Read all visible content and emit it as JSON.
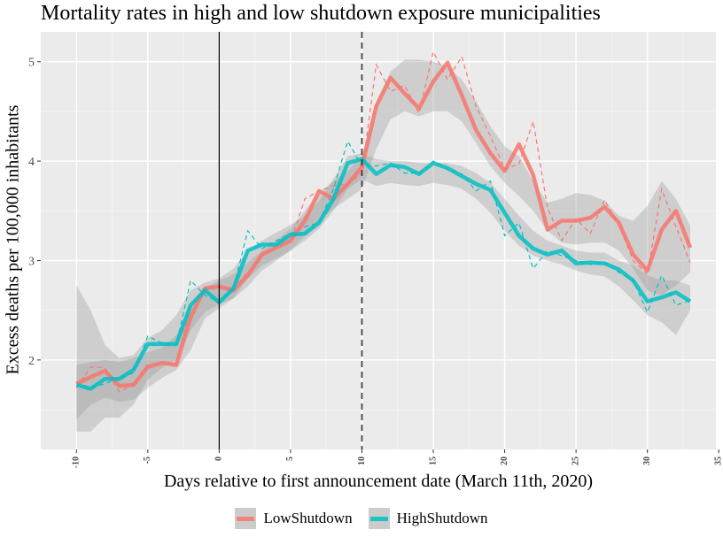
{
  "chart_data": {
    "type": "line",
    "title": "Mortality rates in high and low shutdown exposure municipalities",
    "xlabel": "Days relative to first announcement date (March 11th, 2020)",
    "ylabel": "Excess deaths per 100,000 inhabitants",
    "xlim": [
      -12.5,
      34.8
    ],
    "ylim": [
      1.1,
      5.3
    ],
    "x_ticks": [
      -10,
      -5,
      0,
      5,
      10,
      15,
      20,
      25,
      30,
      35
    ],
    "x_tick_labels": [
      "-10",
      "-5",
      "0",
      "5",
      "10",
      "15",
      "20",
      "25",
      "30",
      "35"
    ],
    "y_ticks": [
      2,
      3,
      4,
      5
    ],
    "y_tick_labels": [
      "2",
      "3",
      "4",
      "5"
    ],
    "vlines": [
      {
        "x": 0,
        "style": "solid"
      },
      {
        "x": 10,
        "style": "dashed"
      }
    ],
    "grid": true,
    "legend_position": "bottom",
    "colors": {
      "LowShutdown": "#f8766d",
      "HighShutdown": "#00bfc4"
    },
    "series": [
      {
        "name": "LowShutdown",
        "color": "#f8766d",
        "x": [
          -10,
          -9,
          -8,
          -7,
          -6,
          -5,
          -4,
          -3,
          -2,
          -1,
          0,
          1,
          2,
          3,
          4,
          5,
          6,
          7,
          8,
          9,
          10,
          11,
          12,
          13,
          14,
          15,
          16,
          17,
          18,
          19,
          20,
          21,
          22,
          23,
          24,
          25,
          26,
          27,
          28,
          29,
          30,
          31,
          32,
          33
        ],
        "raw": [
          1.72,
          1.93,
          1.92,
          1.68,
          1.75,
          1.95,
          1.97,
          1.96,
          2.55,
          2.72,
          2.73,
          2.72,
          2.88,
          3.04,
          3.15,
          3.18,
          3.62,
          3.7,
          3.75,
          3.77,
          3.88,
          4.97,
          4.7,
          4.76,
          4.48,
          5.1,
          4.82,
          5.05,
          4.55,
          4.25,
          3.92,
          3.97,
          4.4,
          3.53,
          3.2,
          3.42,
          3.27,
          3.61,
          3.36,
          3.0,
          2.86,
          3.72,
          3.34,
          2.98
        ],
        "smooth": [
          1.76,
          1.83,
          1.89,
          1.74,
          1.75,
          1.93,
          1.97,
          1.95,
          2.43,
          2.72,
          2.74,
          2.7,
          2.85,
          3.06,
          3.13,
          3.2,
          3.4,
          3.7,
          3.62,
          3.77,
          3.94,
          4.55,
          4.84,
          4.68,
          4.53,
          4.8,
          4.99,
          4.66,
          4.31,
          4.08,
          3.9,
          4.17,
          3.86,
          3.31,
          3.4,
          3.4,
          3.43,
          3.54,
          3.38,
          3.06,
          2.9,
          3.31,
          3.5,
          3.13
        ],
        "ci_lower": [
          1.4,
          1.55,
          1.62,
          1.58,
          1.6,
          1.72,
          1.82,
          1.9,
          2.1,
          2.42,
          2.52,
          2.62,
          2.74,
          2.9,
          3.0,
          3.1,
          3.25,
          3.4,
          3.52,
          3.62,
          3.72,
          4.12,
          4.42,
          4.5,
          4.45,
          4.5,
          4.5,
          4.4,
          4.18,
          3.95,
          3.78,
          3.65,
          3.5,
          3.3,
          3.18,
          3.16,
          3.18,
          3.18,
          3.1,
          2.92,
          2.7,
          2.65,
          2.75,
          2.88
        ],
        "ci_upper": [
          1.95,
          1.98,
          2.0,
          1.98,
          2.02,
          2.08,
          2.12,
          2.25,
          2.52,
          2.72,
          2.8,
          2.86,
          2.98,
          3.1,
          3.2,
          3.32,
          3.5,
          3.68,
          3.8,
          3.9,
          4.05,
          4.6,
          4.9,
          5.02,
          5.02,
          5.0,
          4.95,
          4.82,
          4.6,
          4.35,
          4.15,
          4.05,
          3.8,
          3.58,
          3.62,
          3.68,
          3.66,
          3.6,
          3.45,
          3.4,
          3.55,
          3.8,
          3.62,
          3.35
        ]
      },
      {
        "name": "HighShutdown",
        "color": "#00bfc4",
        "x": [
          -10,
          -9,
          -8,
          -7,
          -6,
          -5,
          -4,
          -3,
          -2,
          -1,
          0,
          1,
          2,
          3,
          4,
          5,
          6,
          7,
          8,
          9,
          10,
          11,
          12,
          13,
          14,
          15,
          16,
          17,
          18,
          19,
          20,
          21,
          22,
          23,
          24,
          25,
          26,
          27,
          28,
          29,
          30,
          31,
          32,
          33
        ],
        "raw": [
          1.77,
          1.72,
          1.76,
          1.82,
          1.87,
          2.24,
          2.17,
          2.15,
          2.8,
          2.65,
          2.58,
          2.72,
          3.3,
          3.12,
          3.2,
          3.27,
          3.34,
          3.38,
          3.72,
          4.2,
          3.95,
          3.95,
          3.98,
          3.88,
          3.88,
          4.0,
          3.92,
          3.87,
          3.7,
          3.8,
          3.25,
          3.38,
          2.92,
          3.1,
          3.05,
          3.0,
          2.96,
          2.98,
          2.88,
          2.8,
          2.48,
          2.85,
          2.55,
          2.6
        ],
        "smooth": [
          1.75,
          1.71,
          1.81,
          1.81,
          1.9,
          2.16,
          2.16,
          2.16,
          2.55,
          2.7,
          2.58,
          2.72,
          3.1,
          3.16,
          3.16,
          3.26,
          3.27,
          3.38,
          3.62,
          3.98,
          4.02,
          3.87,
          3.96,
          3.94,
          3.87,
          3.98,
          3.93,
          3.85,
          3.77,
          3.71,
          3.48,
          3.25,
          3.12,
          3.06,
          3.1,
          2.97,
          2.98,
          2.97,
          2.91,
          2.8,
          2.59,
          2.63,
          2.68,
          2.59
        ],
        "ci_lower": [
          1.28,
          1.28,
          1.42,
          1.42,
          1.55,
          1.8,
          1.92,
          2.0,
          2.3,
          2.48,
          2.56,
          2.62,
          2.82,
          2.95,
          3.02,
          3.1,
          3.2,
          3.32,
          3.5,
          3.72,
          3.82,
          3.75,
          3.78,
          3.76,
          3.75,
          3.78,
          3.76,
          3.72,
          3.62,
          3.48,
          3.3,
          3.15,
          3.05,
          3.0,
          2.96,
          2.9,
          2.86,
          2.84,
          2.74,
          2.6,
          2.45,
          2.38,
          2.25,
          2.5
        ],
        "ci_upper": [
          2.75,
          2.5,
          2.15,
          2.02,
          2.05,
          2.22,
          2.3,
          2.45,
          2.7,
          2.78,
          2.82,
          2.92,
          3.1,
          3.2,
          3.28,
          3.36,
          3.45,
          3.6,
          3.82,
          4.05,
          4.08,
          4.02,
          4.0,
          4.0,
          3.98,
          3.98,
          3.98,
          3.95,
          3.88,
          3.78,
          3.62,
          3.45,
          3.3,
          3.2,
          3.15,
          3.1,
          3.08,
          3.08,
          3.0,
          2.95,
          2.85,
          2.8,
          2.8,
          2.75
        ]
      }
    ]
  }
}
